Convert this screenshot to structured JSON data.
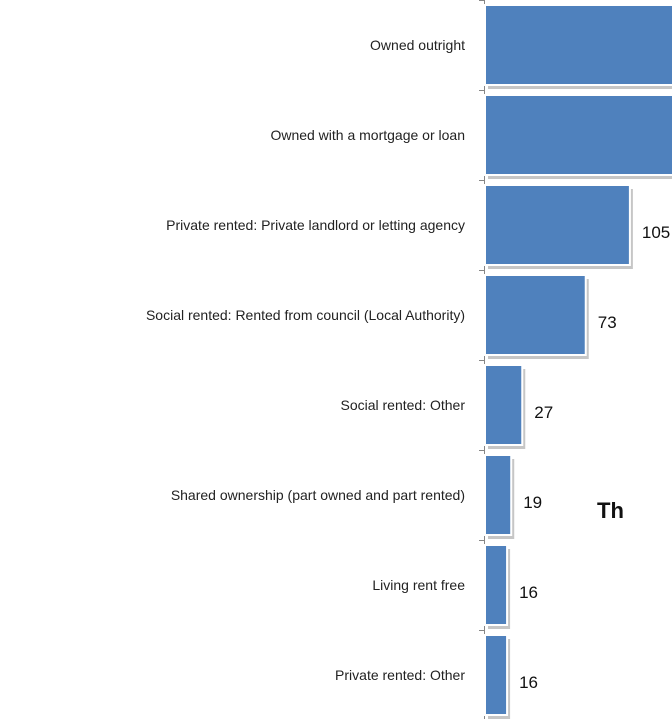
{
  "chart_data": {
    "type": "bar",
    "orientation": "horizontal",
    "categories": [
      "Owned outright",
      "Owned with a mortgage or loan",
      "Private rented: Private landlord or letting agency",
      "Social rented: Rented from council (Local Authority)",
      "Social rented: Other",
      "Shared ownership (part owned and part rented)",
      "Living rent free",
      "Private rented: Other"
    ],
    "values": [
      null,
      null,
      105,
      73,
      27,
      19,
      16,
      16
    ],
    "data_labels": [
      "",
      "",
      "105",
      "73",
      "27",
      "19",
      "16",
      "16"
    ],
    "partial_text": "Th",
    "colors": {
      "bar": "#4f81bd",
      "bar_edge": "#ffffff",
      "shadow": "#b3b3b3",
      "axis": "#868686"
    }
  }
}
